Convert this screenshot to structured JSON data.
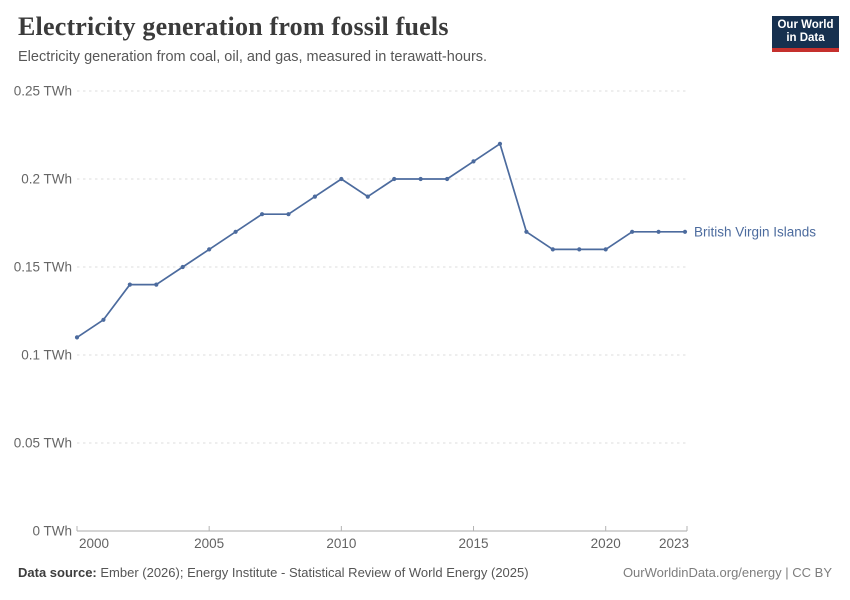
{
  "header": {
    "title": "Electricity generation from fossil fuels",
    "subtitle": "Electricity generation from coal, oil, and gas, measured in terawatt-hours."
  },
  "logo": {
    "line1": "Our World",
    "line2": "in Data"
  },
  "chart_data": {
    "type": "line",
    "title": "Electricity generation from fossil fuels",
    "unit": "TWh",
    "x": [
      2000,
      2001,
      2002,
      2003,
      2004,
      2005,
      2006,
      2007,
      2008,
      2009,
      2010,
      2011,
      2012,
      2013,
      2014,
      2015,
      2016,
      2017,
      2018,
      2019,
      2020,
      2021,
      2022,
      2023
    ],
    "series": [
      {
        "name": "British Virgin Islands",
        "color": "#4c6b9e",
        "values": [
          0.11,
          0.12,
          0.14,
          0.14,
          0.15,
          0.16,
          0.17,
          0.18,
          0.18,
          0.19,
          0.2,
          0.19,
          0.2,
          0.2,
          0.2,
          0.21,
          0.22,
          0.17,
          0.16,
          0.16,
          0.16,
          0.17,
          0.17,
          0.17
        ]
      }
    ],
    "x_ticks": [
      "2000",
      "2005",
      "2010",
      "2015",
      "2020",
      "2023"
    ],
    "y_ticks": [
      {
        "value": 0,
        "label": "0 TWh"
      },
      {
        "value": 0.05,
        "label": "0.05 TWh"
      },
      {
        "value": 0.1,
        "label": "0.1 TWh"
      },
      {
        "value": 0.15,
        "label": "0.15 TWh"
      },
      {
        "value": 0.2,
        "label": "0.2 TWh"
      },
      {
        "value": 0.25,
        "label": "0.25 TWh"
      }
    ],
    "xlim": [
      2000,
      2023
    ],
    "ylim": [
      0,
      0.25
    ],
    "grid": "horizontal-dashed",
    "legend_position": "right-of-line"
  },
  "colors": {
    "line": "#4c6b9e",
    "logo-bg": "#16304f",
    "logo-accent": "#c5302d"
  },
  "footer": {
    "source_label": "Data source:",
    "source_text": " Ember (2026); Energy Institute - Statistical Review of World Energy (2025)",
    "link_text": "OurWorldinData.org/energy | CC BY"
  }
}
